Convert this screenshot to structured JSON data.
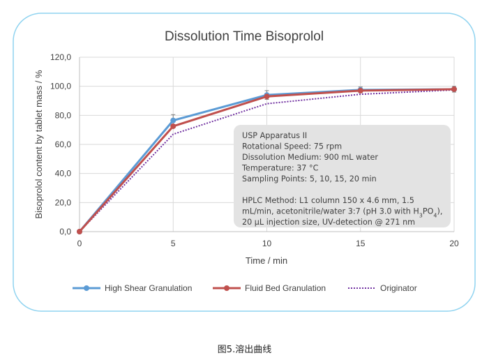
{
  "caption": "图5.溶出曲线",
  "chart_data": {
    "type": "line",
    "title": "Dissolution Time Bisoprolol",
    "xlabel": "Time / min",
    "ylabel": "Bisoprolol content by tablet mass / %",
    "x": [
      0,
      5,
      10,
      15,
      20
    ],
    "x_ticks": [
      "0",
      "5",
      "10",
      "15",
      "20"
    ],
    "y_ticks": [
      "0,0",
      "20,0",
      "40,0",
      "60,0",
      "80,0",
      "100,0",
      "120,0"
    ],
    "xlim": [
      0,
      20
    ],
    "ylim": [
      0,
      120
    ],
    "grid": true,
    "legend_position": "bottom",
    "series": [
      {
        "name": "High Shear Granulation",
        "values": [
          0,
          76.5,
          94,
          97.5,
          98
        ],
        "error": [
          0,
          4,
          3,
          2,
          2
        ],
        "color": "#5b9bd5",
        "style": "solid-marker"
      },
      {
        "name": "Fluid Bed Granulation",
        "values": [
          0,
          72.5,
          93,
          97,
          98
        ],
        "error": [
          0,
          0,
          0,
          0,
          0
        ],
        "color": "#c0504d",
        "style": "solid-marker"
      },
      {
        "name": "Originator",
        "values": [
          0,
          67,
          88,
          94.5,
          97.5
        ],
        "error": [
          0,
          0,
          0,
          0,
          0
        ],
        "color": "#7030a0",
        "style": "dotted"
      }
    ],
    "annotation": {
      "lines": [
        "USP Apparatus II",
        "Rotational Speed: 75 rpm",
        "Dissolution Medium: 900 mL water",
        "Temperature: 37 °C",
        "Sampling Points: 5, 10, 15, 20 min",
        "",
        "HPLC Method: L1 column 150 x 4.6 mm, 1.5",
        "mL/min, acetonitrile/water 3:7 (pH 3.0 with H3PO4),",
        "20 μL injection size, UV-detection @ 271 nm"
      ]
    }
  }
}
